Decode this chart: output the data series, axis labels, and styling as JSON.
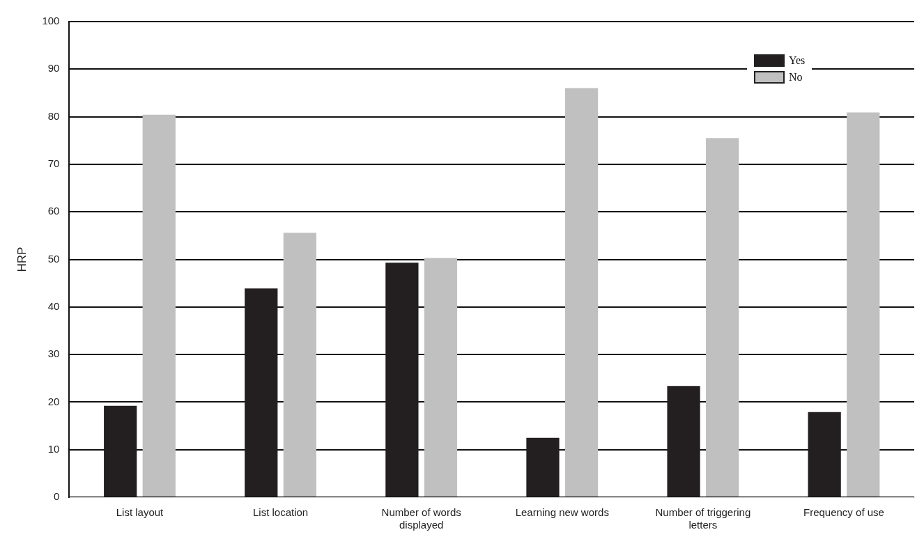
{
  "chart_data": {
    "type": "bar",
    "ylabel": "HRP",
    "categories": [
      "List layout",
      "List location",
      "Number of words displayed",
      "Learning new words",
      "Number of triggering letters",
      "Frequency of use"
    ],
    "series": [
      {
        "name": "Yes",
        "color": "#231f20",
        "values": [
          19.2,
          43.9,
          49.3,
          12.5,
          23.4,
          17.9
        ]
      },
      {
        "name": "No",
        "color": "#c0c0c0",
        "values": [
          80.4,
          55.6,
          50.3,
          86.0,
          75.5,
          80.9
        ]
      }
    ],
    "ylim": [
      0,
      100
    ],
    "yticks": [
      0,
      10,
      20,
      30,
      40,
      50,
      60,
      70,
      80,
      90,
      100
    ],
    "grid": "y",
    "legend": "top right"
  }
}
